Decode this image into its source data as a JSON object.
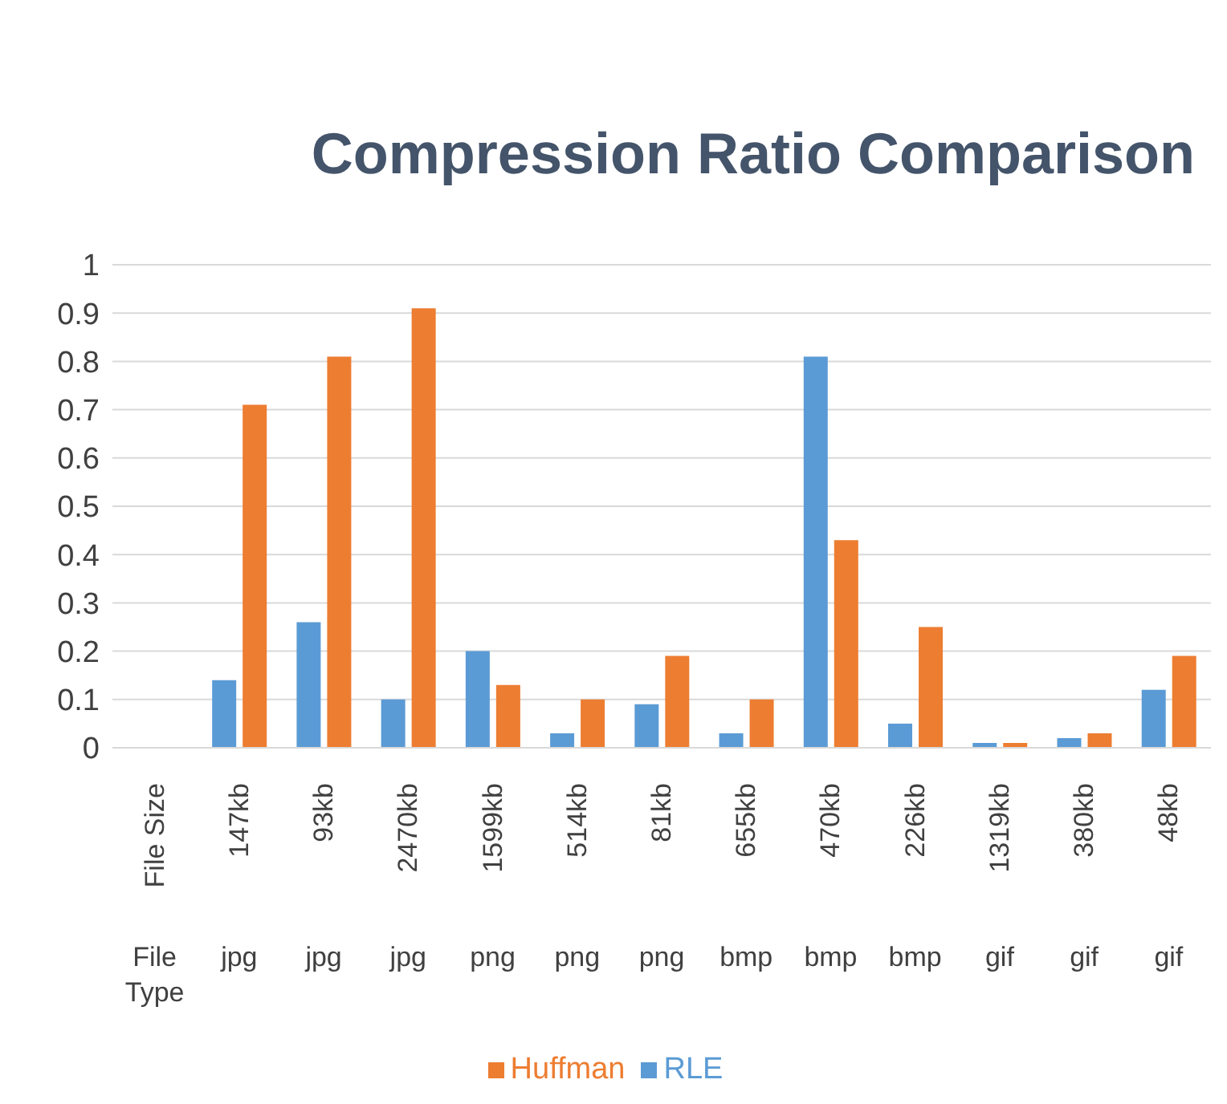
{
  "chart_data": {
    "type": "bar",
    "title": "Compression Ratio Comparison",
    "categories": [
      "File Size\nFile Type",
      "147kb\njpg",
      "93kb\njpg",
      "2470kb\njpg",
      "1599kb\npng",
      "514kb\npng",
      "81kb\npng",
      "655kb\nbmp",
      "470kb\nbmp",
      "226kb\nbmp",
      "1319kb\ngif",
      "380kb\ngif",
      "48kb\ngif"
    ],
    "series": [
      {
        "name": "RLE",
        "color": "#5b9bd5",
        "values": [
          null,
          0.14,
          0.26,
          0.1,
          0.2,
          0.03,
          0.09,
          0.03,
          0.81,
          0.05,
          0.01,
          0.02,
          0.12
        ]
      },
      {
        "name": "Huffman",
        "color": "#ed7d31",
        "values": [
          null,
          0.71,
          0.81,
          0.91,
          0.13,
          0.1,
          0.19,
          0.1,
          0.43,
          0.25,
          0.01,
          0.03,
          0.19
        ]
      }
    ],
    "ylim": [
      0,
      1
    ],
    "yticks": [
      0,
      0.1,
      0.2,
      0.3,
      0.4,
      0.5,
      0.6,
      0.7,
      0.8,
      0.9,
      1
    ],
    "grid": "y",
    "legend": "bottom"
  }
}
